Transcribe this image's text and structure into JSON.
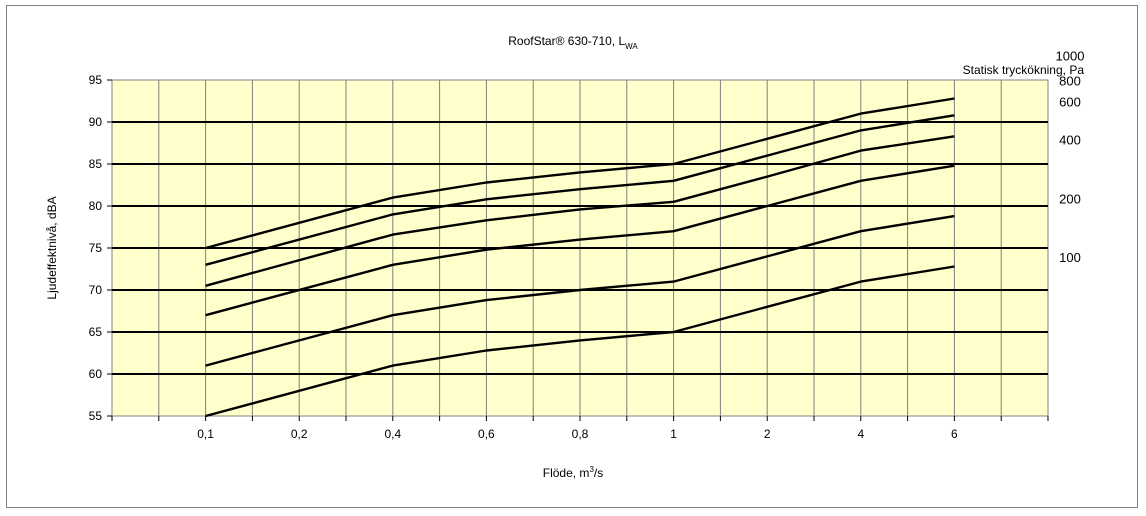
{
  "chart_data": {
    "type": "line",
    "title_main": "RoofStar® 630-710, L",
    "title_sub": "WA",
    "xlabel_main": "Flöde, m",
    "xlabel_sup": "3",
    "xlabel_end": "/s",
    "ylabel": "Ljudeffektnivå, dBA",
    "series_axis_title": "Statisk tryckökning, Pa",
    "categories": [
      "0,1",
      "0,2",
      "0,4",
      "0,6",
      "0,8",
      "1",
      "2",
      "4",
      "6"
    ],
    "ylim": [
      55,
      95
    ],
    "yticks": [
      55,
      60,
      65,
      70,
      75,
      80,
      85,
      90,
      95
    ],
    "grid": true,
    "plot_background": "#ffffcc",
    "line_color": "#000000",
    "series": [
      {
        "name": "1000",
        "x": [
          0.1,
          0.4,
          0.6,
          0.8,
          1,
          2,
          4,
          6
        ],
        "values": [
          75,
          81,
          82.8,
          84,
          85,
          88,
          91,
          92.8
        ]
      },
      {
        "name": "800",
        "x": [
          0.1,
          0.4,
          0.6,
          0.8,
          1,
          2,
          4,
          6
        ],
        "values": [
          73,
          79,
          80.8,
          82,
          83,
          86,
          89,
          90.8
        ]
      },
      {
        "name": "600",
        "x": [
          0.1,
          0.4,
          0.6,
          0.8,
          1,
          2,
          4,
          6
        ],
        "values": [
          70.5,
          76.6,
          78.3,
          79.6,
          80.5,
          83.5,
          86.6,
          88.3
        ]
      },
      {
        "name": "400",
        "x": [
          0.1,
          0.4,
          0.6,
          0.8,
          1,
          2,
          4,
          6
        ],
        "values": [
          67,
          73,
          74.8,
          76,
          77,
          80,
          83,
          84.8
        ]
      },
      {
        "name": "200",
        "x": [
          0.1,
          0.4,
          0.6,
          0.8,
          1,
          2,
          4,
          6
        ],
        "values": [
          61,
          67,
          68.8,
          70,
          71,
          74,
          77,
          78.8
        ]
      },
      {
        "name": "100",
        "x": [
          0.1,
          0.4,
          0.6,
          0.8,
          1,
          2,
          4,
          6
        ],
        "values": [
          55,
          61,
          62.8,
          64,
          65,
          68,
          71,
          72.8
        ]
      }
    ]
  }
}
